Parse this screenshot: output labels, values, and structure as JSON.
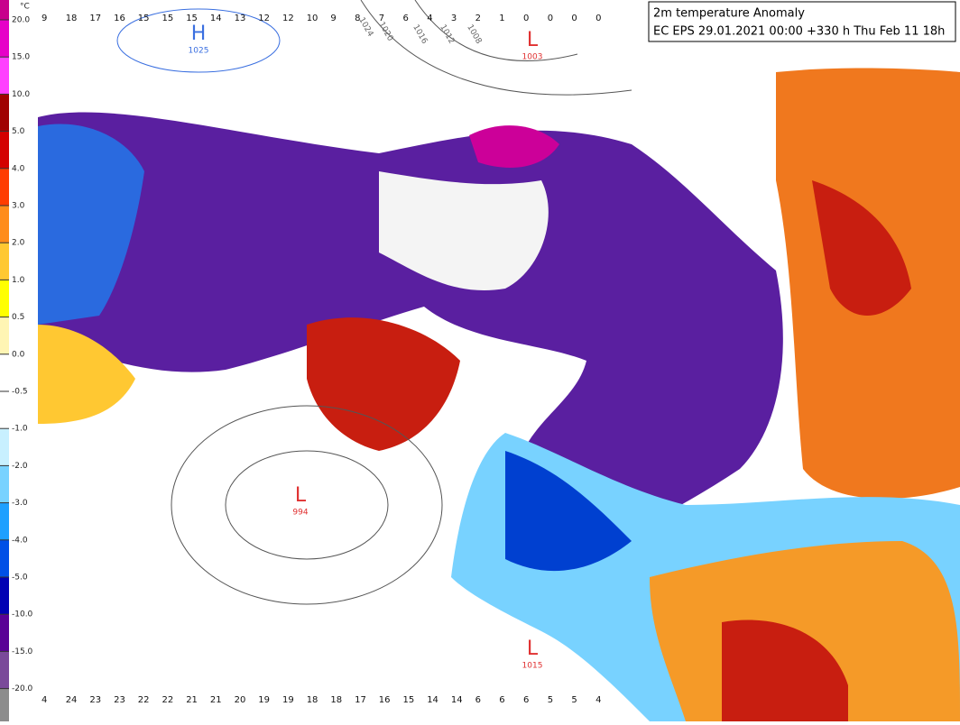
{
  "title_box": {
    "line1": "2m temperature Anomaly",
    "line2": "EC EPS 29.01.2021 00:00 +330 h Thu Feb 11 18h"
  },
  "colorbar": {
    "unit": "°C",
    "labels": [
      "20.0",
      "15.0",
      "10.0",
      "5.0",
      "4.0",
      "3.0",
      "2.0",
      "1.0",
      "0.5",
      "0.0",
      "-0.5",
      "-1.0",
      "-2.0",
      "-3.0",
      "-4.0",
      "-5.0",
      "-10.0",
      "-15.0",
      "-20.0"
    ]
  },
  "pressure_centers": [
    {
      "letter": "H",
      "value": "1025"
    },
    {
      "letter": "L",
      "value": "1003"
    },
    {
      "letter": "L",
      "value": "994"
    },
    {
      "letter": "L",
      "value": "1015"
    }
  ],
  "isobar_labels": [
    "1024",
    "1020",
    "1016",
    "1012",
    "1008"
  ],
  "anomaly_grid": {
    "rows": [
      [
        9,
        18,
        17,
        16,
        15,
        15,
        15,
        14,
        13,
        12,
        12,
        10,
        9,
        8,
        7,
        6,
        4,
        3,
        2,
        1,
        0,
        0,
        0,
        0
      ],
      [
        4,
        24,
        23,
        23,
        22,
        22,
        21,
        21,
        20,
        19,
        19,
        18,
        18,
        17,
        16,
        15,
        14,
        14,
        6,
        6,
        6,
        5,
        5,
        4
      ]
    ]
  }
}
